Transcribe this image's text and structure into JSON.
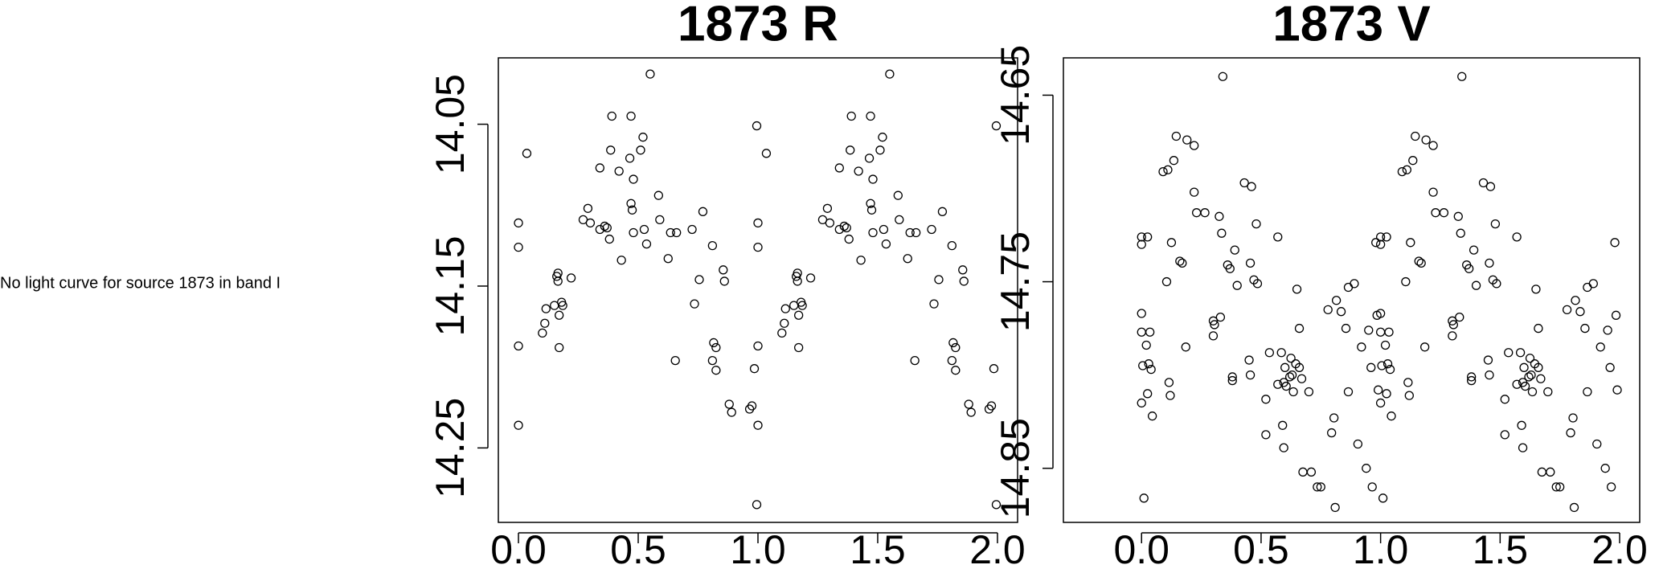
{
  "message": "No light curve for source 1873 in band I",
  "chart_data": [
    {
      "type": "scatter",
      "title": "1873 R",
      "color": "#000000",
      "xlim": [
        -0.084,
        2.084
      ],
      "ylim": [
        14.296,
        14.009
      ],
      "xticks": [
        {
          "value": 0,
          "label": "0.0"
        },
        0.5,
        {
          "value": 1,
          "label": "1.0"
        },
        1.5,
        {
          "value": 2,
          "label": "2.0"
        }
      ],
      "yticks": [
        14.05,
        14.15,
        14.25
      ],
      "x": [
        0.0,
        0.0,
        0.0,
        0.0,
        0.035,
        0.1,
        0.11,
        0.115,
        0.15,
        0.16,
        0.165,
        0.165,
        0.17,
        0.17,
        0.18,
        0.185,
        0.22,
        0.27,
        0.29,
        0.3,
        0.34,
        0.34,
        0.36,
        0.37,
        0.38,
        0.385,
        0.39,
        0.42,
        0.43,
        0.465,
        0.47,
        0.47,
        0.475,
        0.48,
        0.48,
        0.51,
        0.52,
        0.525,
        0.535,
        0.55,
        0.585,
        0.59,
        0.625,
        0.635,
        0.66,
        0.655,
        0.725,
        0.735,
        0.755,
        0.77,
        0.81,
        0.81,
        0.815,
        0.825,
        0.825,
        0.855,
        0.86,
        0.88,
        0.89,
        0.965,
        0.975,
        0.985,
        0.995,
        0.995,
        1.0,
        1.0,
        1.0,
        1.0,
        1.035,
        1.1,
        1.11,
        1.115,
        1.15,
        1.16,
        1.165,
        1.165,
        1.17,
        1.17,
        1.18,
        1.185,
        1.22,
        1.27,
        1.29,
        1.3,
        1.34,
        1.34,
        1.36,
        1.37,
        1.38,
        1.385,
        1.39,
        1.42,
        1.43,
        1.465,
        1.47,
        1.47,
        1.475,
        1.48,
        1.48,
        1.51,
        1.52,
        1.525,
        1.535,
        1.55,
        1.585,
        1.59,
        1.625,
        1.635,
        1.66,
        1.655,
        1.725,
        1.735,
        1.755,
        1.77,
        1.81,
        1.81,
        1.815,
        1.825,
        1.825,
        1.855,
        1.86,
        1.88,
        1.89,
        1.965,
        1.975,
        1.985,
        1.995,
        1.995
      ],
      "values": [
        14.111,
        14.126,
        14.187,
        14.236,
        14.068,
        14.179,
        14.173,
        14.164,
        14.162,
        14.144,
        14.147,
        14.142,
        14.168,
        14.188,
        14.16,
        14.162,
        14.145,
        14.109,
        14.102,
        14.111,
        14.077,
        14.115,
        14.113,
        14.114,
        14.121,
        14.066,
        14.045,
        14.079,
        14.134,
        14.071,
        14.045,
        14.099,
        14.103,
        14.084,
        14.117,
        14.066,
        14.058,
        14.115,
        14.124,
        14.019,
        14.094,
        14.109,
        14.133,
        14.117,
        14.117,
        14.196,
        14.115,
        14.161,
        14.146,
        14.104,
        14.125,
        14.196,
        14.185,
        14.188,
        14.202,
        14.14,
        14.147,
        14.223,
        14.228,
        14.226,
        14.224,
        14.201,
        14.051,
        14.285,
        14.111,
        14.126,
        14.187,
        14.236,
        14.068,
        14.179,
        14.173,
        14.164,
        14.162,
        14.144,
        14.147,
        14.142,
        14.168,
        14.188,
        14.16,
        14.162,
        14.145,
        14.109,
        14.102,
        14.111,
        14.077,
        14.115,
        14.113,
        14.114,
        14.121,
        14.066,
        14.045,
        14.079,
        14.134,
        14.071,
        14.045,
        14.099,
        14.103,
        14.084,
        14.117,
        14.066,
        14.058,
        14.115,
        14.124,
        14.019,
        14.094,
        14.109,
        14.133,
        14.117,
        14.117,
        14.196,
        14.115,
        14.161,
        14.146,
        14.104,
        14.125,
        14.196,
        14.185,
        14.188,
        14.202,
        14.14,
        14.147,
        14.223,
        14.228,
        14.226,
        14.224,
        14.201,
        14.051,
        14.285
      ]
    },
    {
      "type": "scatter",
      "title": "1873 V",
      "color": "#000000",
      "xlim": [
        -0.327,
        2.084
      ],
      "ylim": [
        14.879,
        14.63
      ],
      "xticks": [
        {
          "value": 0,
          "label": "0.0"
        },
        0.5,
        {
          "value": 1,
          "label": "1.0"
        },
        1.5,
        {
          "value": 2,
          "label": "2.0"
        }
      ],
      "yticks": [
        14.65,
        14.75,
        14.85
      ],
      "x": [
        0.0,
        0.0,
        0.0,
        0.0,
        0.0,
        0.005,
        0.01,
        0.02,
        0.025,
        0.025,
        0.03,
        0.035,
        0.04,
        0.045,
        0.09,
        0.105,
        0.11,
        0.115,
        0.12,
        0.125,
        0.135,
        0.145,
        0.16,
        0.17,
        0.185,
        0.19,
        0.22,
        0.22,
        0.23,
        0.265,
        0.3,
        0.3,
        0.305,
        0.33,
        0.325,
        0.335,
        0.34,
        0.36,
        0.37,
        0.38,
        0.38,
        0.39,
        0.4,
        0.43,
        0.45,
        0.455,
        0.455,
        0.46,
        0.47,
        0.48,
        0.485,
        0.52,
        0.52,
        0.535,
        0.57,
        0.57,
        0.585,
        0.59,
        0.595,
        0.595,
        0.6,
        0.605,
        0.62,
        0.625,
        0.63,
        0.635,
        0.645,
        0.66,
        0.66,
        0.65,
        0.67,
        0.675,
        0.7,
        0.71,
        0.735,
        0.75,
        0.78,
        0.795,
        0.805,
        0.81,
        0.815,
        0.835,
        0.855,
        0.865,
        0.865,
        0.89,
        0.905,
        0.92,
        0.94,
        0.95,
        0.96,
        0.965,
        0.98,
        0.985,
        0.99,
        1.0,
        1.0,
        1.0,
        1.0,
        1.0,
        1.005,
        1.01,
        1.02,
        1.025,
        1.025,
        1.03,
        1.035,
        1.04,
        1.045,
        1.09,
        1.105,
        1.11,
        1.115,
        1.12,
        1.125,
        1.135,
        1.145,
        1.16,
        1.17,
        1.185,
        1.19,
        1.22,
        1.22,
        1.23,
        1.265,
        1.3,
        1.3,
        1.305,
        1.33,
        1.325,
        1.335,
        1.34,
        1.36,
        1.37,
        1.38,
        1.38,
        1.39,
        1.4,
        1.43,
        1.45,
        1.455,
        1.455,
        1.46,
        1.47,
        1.48,
        1.485,
        1.52,
        1.52,
        1.535,
        1.57,
        1.57,
        1.585,
        1.59,
        1.595,
        1.595,
        1.6,
        1.605,
        1.62,
        1.625,
        1.63,
        1.635,
        1.645,
        1.66,
        1.66,
        1.65,
        1.67,
        1.675,
        1.7,
        1.71,
        1.735,
        1.75,
        1.78,
        1.795,
        1.805,
        1.81,
        1.815,
        1.835,
        1.855,
        1.865,
        1.865,
        1.89,
        1.905,
        1.92,
        1.94,
        1.95,
        1.96,
        1.965,
        1.98,
        1.985,
        1.99
      ],
      "values": [
        14.767,
        14.777,
        14.726,
        14.73,
        14.815,
        14.795,
        14.866,
        14.784,
        14.726,
        14.81,
        14.794,
        14.777,
        14.797,
        14.822,
        14.691,
        14.75,
        14.69,
        14.804,
        14.811,
        14.729,
        14.685,
        14.672,
        14.739,
        14.74,
        14.785,
        14.674,
        14.677,
        14.702,
        14.713,
        14.713,
        14.771,
        14.779,
        14.773,
        14.769,
        14.715,
        14.724,
        14.64,
        14.741,
        14.743,
        14.801,
        14.803,
        14.733,
        14.752,
        14.697,
        14.792,
        14.74,
        14.8,
        14.699,
        14.749,
        14.719,
        14.751,
        14.832,
        14.813,
        14.788,
        14.726,
        14.805,
        14.788,
        14.827,
        14.839,
        14.804,
        14.796,
        14.806,
        14.801,
        14.791,
        14.8,
        14.809,
        14.794,
        14.775,
        14.796,
        14.754,
        14.802,
        14.852,
        14.809,
        14.852,
        14.86,
        14.86,
        14.765,
        14.831,
        14.823,
        14.871,
        14.76,
        14.766,
        14.775,
        14.753,
        14.809,
        14.751,
        14.837,
        14.785,
        14.85,
        14.776,
        14.796,
        14.86,
        14.729,
        14.768,
        14.808,
        14.767,
        14.777,
        14.726,
        14.73,
        14.815,
        14.795,
        14.866,
        14.784,
        14.726,
        14.81,
        14.794,
        14.777,
        14.797,
        14.822,
        14.691,
        14.75,
        14.69,
        14.804,
        14.811,
        14.729,
        14.685,
        14.672,
        14.739,
        14.74,
        14.785,
        14.674,
        14.677,
        14.702,
        14.713,
        14.713,
        14.771,
        14.779,
        14.773,
        14.769,
        14.715,
        14.724,
        14.64,
        14.741,
        14.743,
        14.801,
        14.803,
        14.733,
        14.752,
        14.697,
        14.792,
        14.74,
        14.8,
        14.699,
        14.749,
        14.719,
        14.751,
        14.832,
        14.813,
        14.788,
        14.726,
        14.805,
        14.788,
        14.827,
        14.839,
        14.804,
        14.796,
        14.806,
        14.801,
        14.791,
        14.8,
        14.809,
        14.794,
        14.775,
        14.796,
        14.754,
        14.802,
        14.852,
        14.809,
        14.852,
        14.86,
        14.86,
        14.765,
        14.831,
        14.823,
        14.871,
        14.76,
        14.766,
        14.775,
        14.753,
        14.809,
        14.751,
        14.837,
        14.785,
        14.85,
        14.776,
        14.796,
        14.86,
        14.729,
        14.768,
        14.808
      ]
    }
  ]
}
